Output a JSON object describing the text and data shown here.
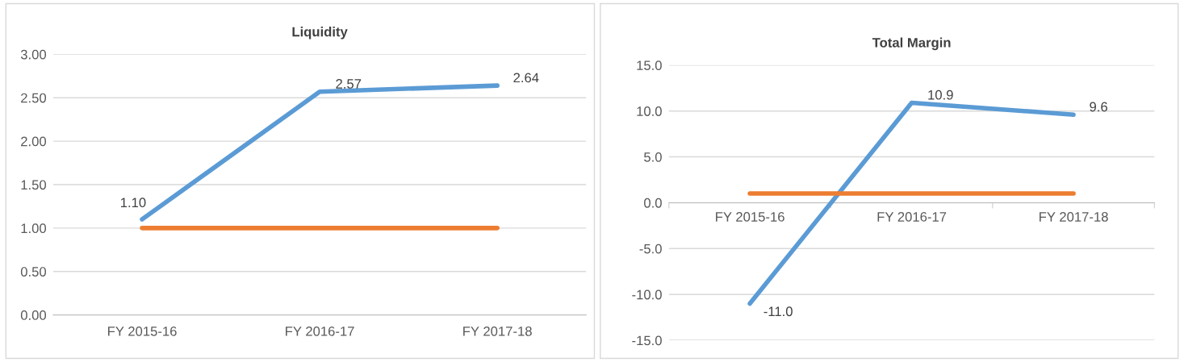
{
  "chart_data": [
    {
      "type": "line",
      "title": "Liquidity",
      "categories": [
        "FY 2015-16",
        "FY 2016-17",
        "FY 2017-18"
      ],
      "series": [
        {
          "color": "#5b9bd5",
          "values": [
            1.1,
            2.57,
            2.64
          ],
          "value_labels": [
            "1.10",
            "2.57",
            "2.64"
          ]
        },
        {
          "color": "#ed7d31",
          "values": [
            1.0,
            1.0,
            1.0
          ]
        }
      ],
      "ylim": [
        0,
        3
      ],
      "yticks": [
        {
          "value": 0,
          "label": "0.00"
        },
        {
          "value": 0.5,
          "label": "0.50"
        },
        {
          "value": 1,
          "label": "1.00"
        },
        {
          "value": 1.5,
          "label": "1.50"
        },
        {
          "value": 2,
          "label": "2.00"
        },
        {
          "value": 2.5,
          "label": "2.50"
        },
        {
          "value": 3,
          "label": "3.00"
        }
      ],
      "grid": "y",
      "legend": false,
      "marker": "none",
      "line_style": "solid"
    },
    {
      "type": "line",
      "title": "Total Margin",
      "categories": [
        "FY 2015-16",
        "FY 2016-17",
        "FY 2017-18"
      ],
      "series": [
        {
          "color": "#5b9bd5",
          "values": [
            -11.0,
            10.9,
            9.6
          ],
          "value_labels": [
            "-11.0",
            "10.9",
            "9.6"
          ]
        },
        {
          "color": "#ed7d31",
          "values": [
            1.0,
            1.0,
            1.0
          ]
        }
      ],
      "ylim": [
        -15,
        15
      ],
      "yticks": [
        {
          "value": -15,
          "label": "-15.0"
        },
        {
          "value": -10,
          "label": "-10.0"
        },
        {
          "value": -5,
          "label": "-5.0"
        },
        {
          "value": 0,
          "label": "0.0"
        },
        {
          "value": 5,
          "label": "5.0"
        },
        {
          "value": 10,
          "label": "10.0"
        },
        {
          "value": 15,
          "label": "15.0"
        }
      ],
      "grid": "y",
      "legend": false,
      "marker": "none",
      "line_style": "solid"
    }
  ]
}
